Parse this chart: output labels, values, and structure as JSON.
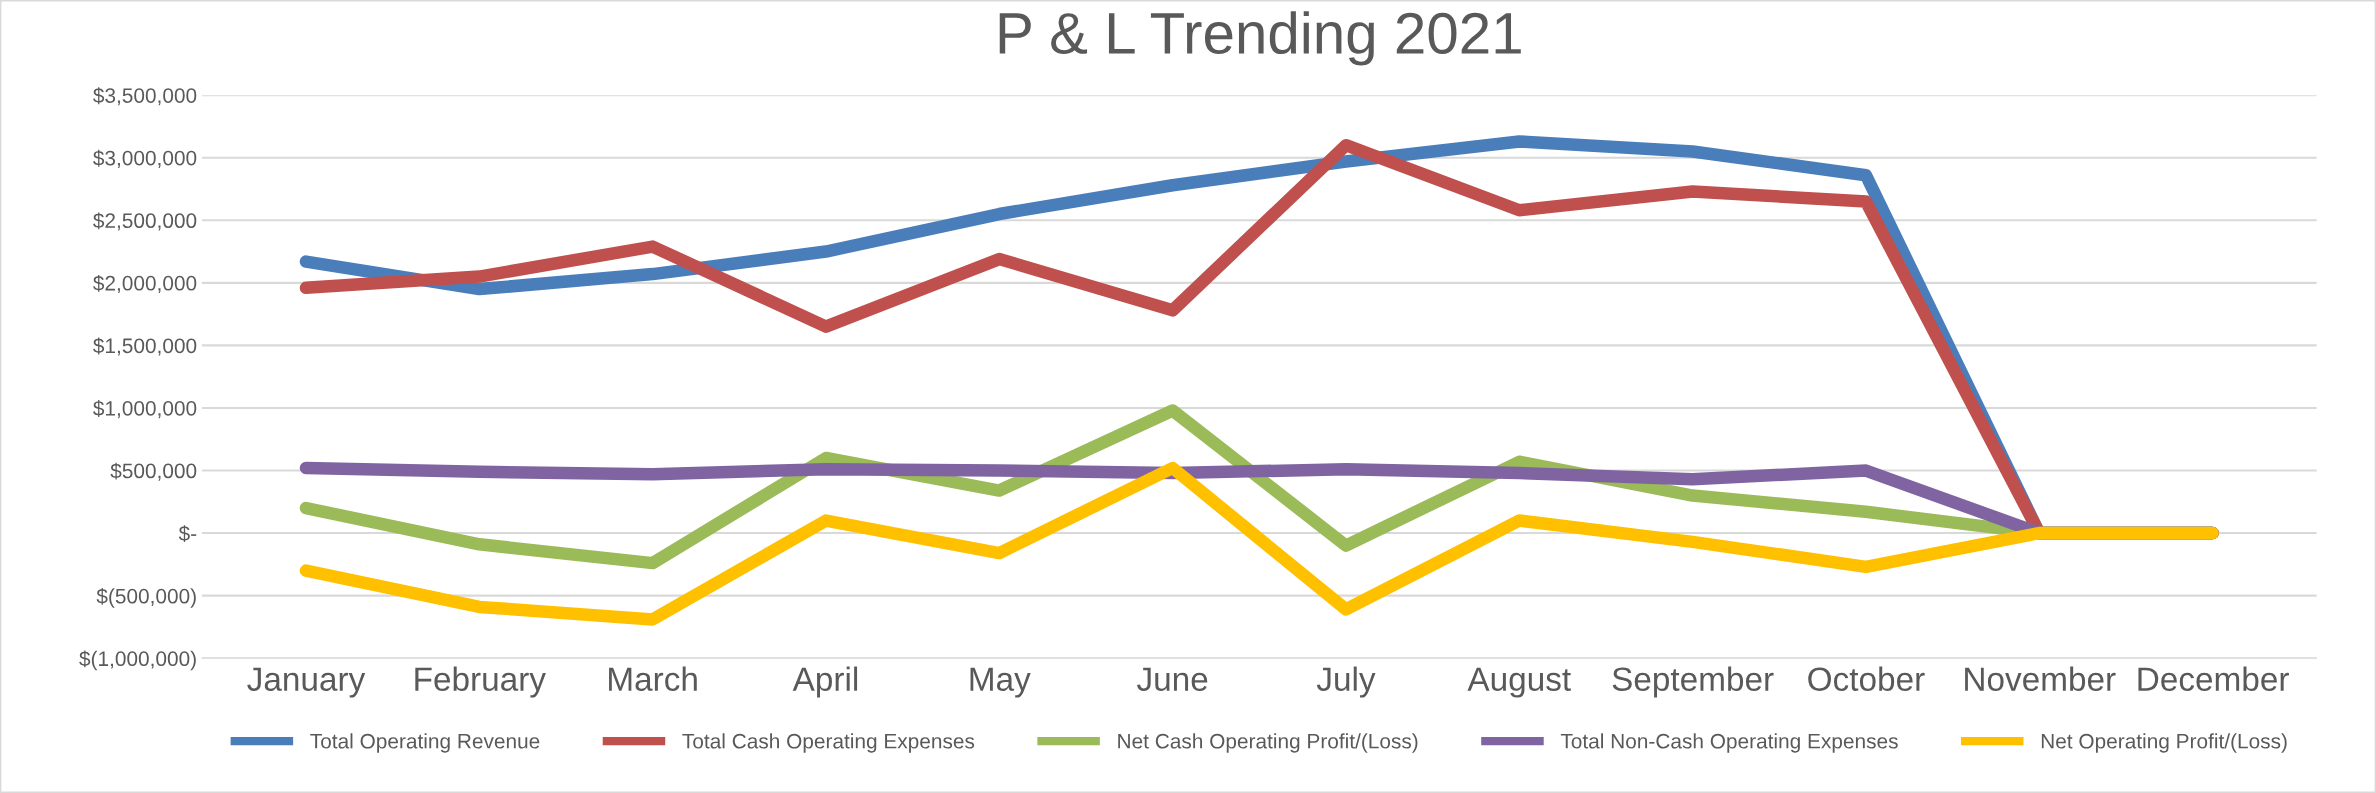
{
  "chart_data": {
    "type": "line",
    "title": "P & L Trending 2021",
    "categories": [
      "January",
      "February",
      "March",
      "April",
      "May",
      "June",
      "July",
      "August",
      "September",
      "October",
      "November",
      "December"
    ],
    "series": [
      {
        "name": "Total Operating Revenue",
        "color": "#4a7ebb",
        "values": [
          2170000,
          1950000,
          2070000,
          2250000,
          2550000,
          2780000,
          2970000,
          3130000,
          3050000,
          2860000,
          0,
          0
        ]
      },
      {
        "name": "Total Cash Operating Expenses",
        "color": "#c0504d",
        "values": [
          1960000,
          2050000,
          2290000,
          1650000,
          2190000,
          1780000,
          3100000,
          2580000,
          2730000,
          2650000,
          0,
          0
        ]
      },
      {
        "name": "Net Cash Operating Profit/(Loss)",
        "color": "#9bbb59",
        "values": [
          200000,
          -90000,
          -240000,
          600000,
          340000,
          980000,
          -100000,
          570000,
          300000,
          170000,
          0,
          0
        ]
      },
      {
        "name": "Total Non-Cash Operating Expenses",
        "color": "#8064a2",
        "values": [
          520000,
          490000,
          470000,
          510000,
          500000,
          480000,
          510000,
          480000,
          430000,
          500000,
          0,
          0
        ]
      },
      {
        "name": "Net Operating Profit/(Loss)",
        "color": "#ffc000",
        "values": [
          -300000,
          -590000,
          -690000,
          100000,
          -160000,
          520000,
          -610000,
          100000,
          -70000,
          -270000,
          0,
          0
        ]
      }
    ],
    "ylim": [
      -1000000,
      3500000
    ],
    "yticks": [
      {
        "value": -1000000,
        "label": "$(1,000,000)"
      },
      {
        "value": -500000,
        "label": "$(500,000)"
      },
      {
        "value": 0,
        "label": "$-"
      },
      {
        "value": 500000,
        "label": "$500,000"
      },
      {
        "value": 1000000,
        "label": "$1,000,000"
      },
      {
        "value": 1500000,
        "label": "$1,500,000"
      },
      {
        "value": 2000000,
        "label": "$2,000,000"
      },
      {
        "value": 2500000,
        "label": "$2,500,000"
      },
      {
        "value": 3000000,
        "label": "$3,000,000"
      },
      {
        "value": 3500000,
        "label": "$3,500,000"
      }
    ],
    "grid": "y",
    "legend": "bottom",
    "line_style": "solid"
  }
}
